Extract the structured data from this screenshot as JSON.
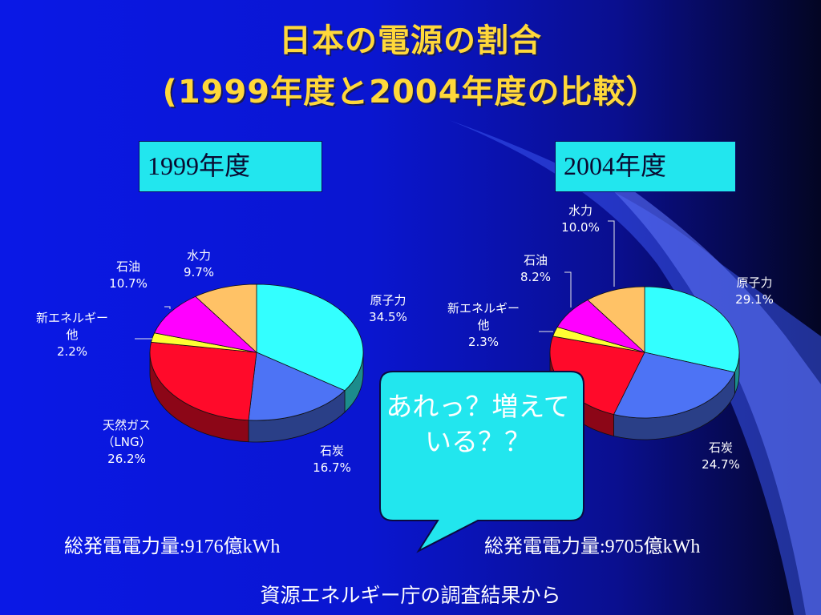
{
  "title_line1": "日本の電源の割合",
  "title_line2": "(1999年度と2004年度の比較）",
  "bubble_text": "あれっ？増えている？？",
  "source_note": "資源エネルギー庁の調査結果から",
  "colors": {
    "nuclear": "#33ffff",
    "coal": "#4d73f5",
    "gas": "#ff0a2a",
    "new_energy": "#ffff33",
    "oil": "#ff00ff",
    "hydro": "#ffc266",
    "title": "#ffd83a",
    "bubble": "#22e6ee"
  },
  "chart_data": [
    {
      "type": "pie",
      "title": "1999年度",
      "total_label": "総発電電力量",
      "total_value": "9176億kWh",
      "slices": [
        {
          "key": "nuclear",
          "label": [
            "原子力"
          ],
          "value": 34.5,
          "value_label": "34.5%"
        },
        {
          "key": "coal",
          "label": [
            "石炭"
          ],
          "value": 16.7,
          "value_label": "16.7%"
        },
        {
          "key": "gas",
          "label": [
            "天然ガス",
            "（LNG）"
          ],
          "value": 26.2,
          "value_label": "26.2%"
        },
        {
          "key": "new_energy",
          "label": [
            "新エネルギー",
            "他"
          ],
          "value": 2.2,
          "value_label": "2.2%"
        },
        {
          "key": "oil",
          "label": [
            "石油"
          ],
          "value": 10.7,
          "value_label": "10.7%"
        },
        {
          "key": "hydro",
          "label": [
            "水力"
          ],
          "value": 9.7,
          "value_label": "9.7%"
        }
      ]
    },
    {
      "type": "pie",
      "title": "2004年度",
      "total_label": "総発電電力量",
      "total_value": "9705億kWh",
      "slices": [
        {
          "key": "nuclear",
          "label": [
            "原子力"
          ],
          "value": 29.1,
          "value_label": "29.1%"
        },
        {
          "key": "coal",
          "label": [
            "石炭"
          ],
          "value": 24.7,
          "value_label": "24.7%"
        },
        {
          "key": "gas",
          "label": [],
          "value": 23.0,
          "value_label": ""
        },
        {
          "key": "new_energy",
          "label": [
            "新エネルギー",
            "他"
          ],
          "value": 2.3,
          "value_label": "2.3%"
        },
        {
          "key": "oil",
          "label": [
            "石油"
          ],
          "value": 8.2,
          "value_label": "8.2%"
        },
        {
          "key": "hydro",
          "label": [
            "水力"
          ],
          "value": 10.0,
          "value_label": "10.0%"
        }
      ]
    }
  ]
}
